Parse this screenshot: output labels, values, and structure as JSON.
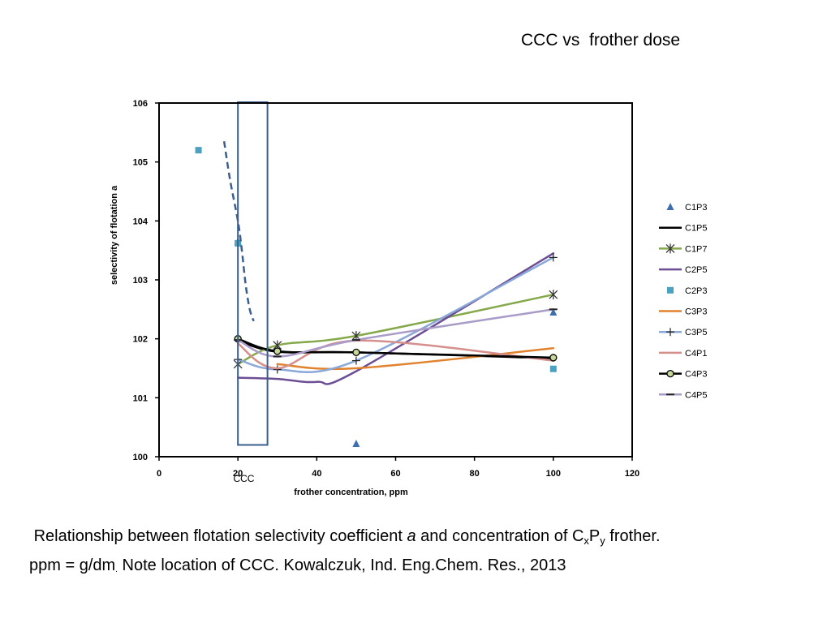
{
  "slide": {
    "title": "CCC vs  frother dose",
    "caption": {
      "pre": "Relationship between flotation selectivity coefficient ",
      "a": "a",
      "mid": " and concentration of C",
      "sub_x": "x",
      "p": "P",
      "sub_y": "y",
      "post": " frother.",
      "line2_a": "ppm = g/dm",
      "line2_dot": ".",
      "line2_b": " Note location of CCC. Kowalczuk, Ind. Eng.Chem. Res., 2013"
    }
  },
  "chart_data": {
    "type": "line",
    "xlabel": "frother concentration, ppm",
    "ylabel": "selectivity of flotation   a",
    "xlim": [
      0,
      120
    ],
    "ylim": [
      100,
      106
    ],
    "x_ticks": [
      0,
      20,
      40,
      60,
      80,
      100,
      120
    ],
    "y_ticks": [
      100,
      101,
      102,
      103,
      104,
      105,
      106
    ],
    "grid": false,
    "legend_position": "right",
    "ccc_box": {
      "label": "CCC",
      "x_range": [
        20,
        27.5
      ],
      "y_range": [
        100.2,
        106
      ],
      "color": "#3a5f8f"
    },
    "dashed_curve": {
      "color": "#3a5f8f",
      "x": [
        16.5,
        18,
        20,
        21,
        22,
        23,
        24
      ],
      "y": [
        105.35,
        104.7,
        104,
        103.5,
        102.9,
        102.5,
        102.3
      ]
    },
    "series": [
      {
        "name": "C1P3",
        "kind": "markers",
        "marker": "triangle",
        "color": "#3d6fae",
        "x": [
          20,
          50,
          100
        ],
        "y": [
          103.65,
          100.22,
          102.45
        ]
      },
      {
        "name": "C1P5",
        "kind": "line",
        "marker": "none",
        "color": "#000000",
        "width": 2.5,
        "x": [
          20,
          30,
          50,
          100
        ],
        "y": [
          101.97,
          101.78,
          101.77,
          101.67
        ]
      },
      {
        "name": "C1P7",
        "kind": "line",
        "marker": "star",
        "color": "#84a84a",
        "width": 2.5,
        "x": [
          20,
          30,
          50,
          100
        ],
        "y": [
          101.57,
          101.89,
          102.05,
          102.75
        ]
      },
      {
        "name": "C2P5",
        "kind": "line",
        "marker": "none",
        "color": "#6b4e94",
        "width": 2.5,
        "x": [
          20,
          30,
          40,
          50,
          100
        ],
        "y": [
          101.34,
          101.32,
          101.27,
          101.45,
          103.45
        ]
      },
      {
        "name": "C2P3",
        "kind": "markers",
        "marker": "square",
        "color": "#4aa2c0",
        "x": [
          10,
          20,
          100
        ],
        "y": [
          105.2,
          103.62,
          101.49
        ]
      },
      {
        "name": "C3P3",
        "kind": "line",
        "marker": "none",
        "color": "#e0822e",
        "width": 2.5,
        "x": [
          30,
          50,
          100
        ],
        "y": [
          101.57,
          101.5,
          101.84
        ]
      },
      {
        "name": "C3P5",
        "kind": "line",
        "marker": "plus",
        "color": "#8aa8d8",
        "width": 2.5,
        "x": [
          20,
          30,
          50,
          100
        ],
        "y": [
          101.65,
          101.48,
          101.63,
          103.38
        ]
      },
      {
        "name": "C4P1",
        "kind": "line",
        "marker": "none",
        "color": "#d58f8c",
        "width": 2.5,
        "x": [
          20,
          30,
          50,
          100
        ],
        "y": [
          101.92,
          101.5,
          101.97,
          101.63
        ]
      },
      {
        "name": "C4P3",
        "kind": "line",
        "marker": "circle",
        "color": "#000000",
        "width": 2.5,
        "x": [
          20,
          30,
          50,
          100
        ],
        "y": [
          102.0,
          101.79,
          101.77,
          101.68
        ]
      },
      {
        "name": "C4P5",
        "kind": "line",
        "marker": "dash",
        "color": "#a99cc8",
        "width": 2.5,
        "x": [
          20,
          30,
          50,
          100
        ],
        "y": [
          101.98,
          101.7,
          101.98,
          102.5
        ]
      }
    ]
  }
}
